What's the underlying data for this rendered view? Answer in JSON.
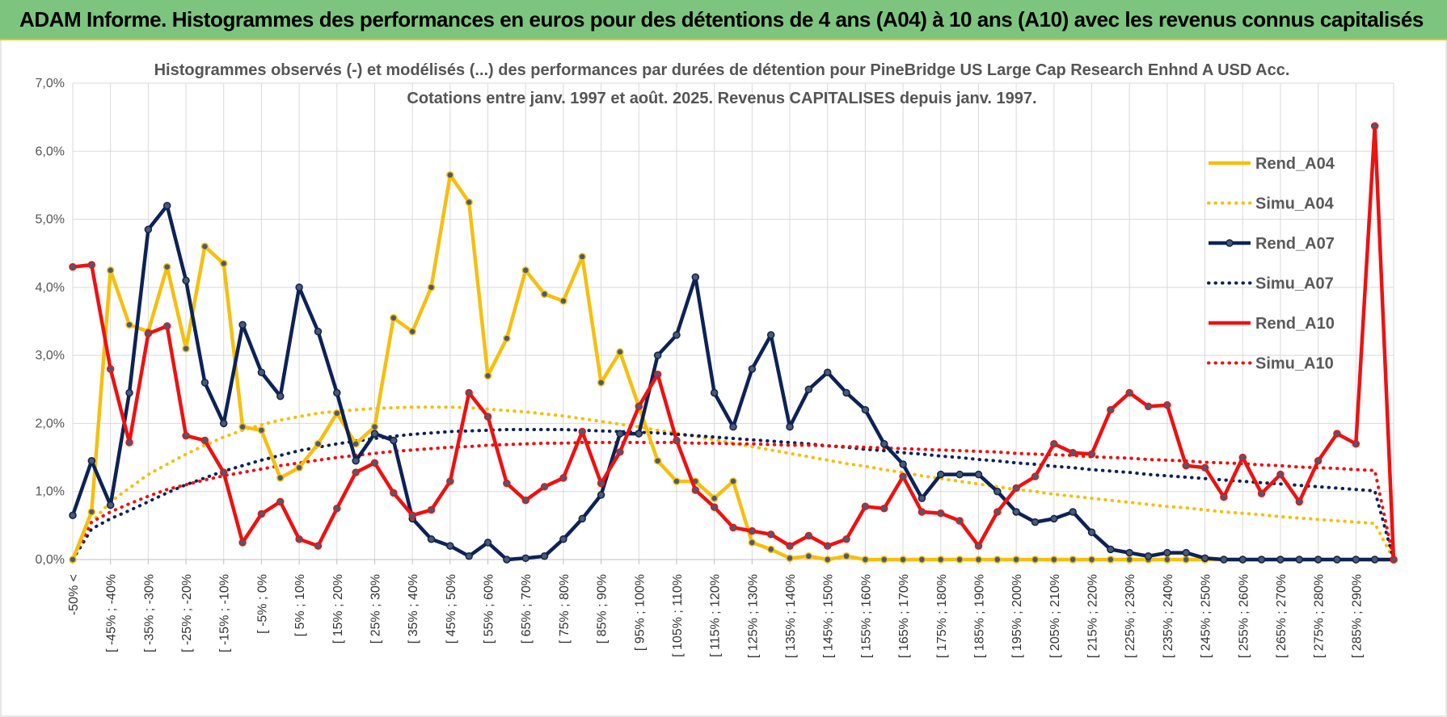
{
  "banner": {
    "title": "ADAM Informe. Histogrammes des performances en euros pour des détentions de 4 ans (A04) à 10 ans (A10) avec les revenus connus capitalisés"
  },
  "chart_data": {
    "type": "line",
    "title_line1": "Histogrammes observés (-) et modélisés (...) des performances par durées de détention pour PineBridge US Large Cap Research Enhnd A USD Acc.",
    "title_line2": "Cotations entre janv. 1997 et août. 2025. Revenus CAPITALISES depuis janv. 1997.",
    "xlabel": "",
    "ylabel": "",
    "ylim": [
      0,
      7
    ],
    "yticks": [
      "0,0%",
      "1,0%",
      "2,0%",
      "3,0%",
      "4,0%",
      "5,0%",
      "6,0%",
      "7,0%"
    ],
    "grid": true,
    "legend_position": "right",
    "x_tick_labels": [
      "-50% <",
      "[ -45% ; -40%",
      "[ -35% ; -30%",
      "[ -25% ; -20%",
      "[ -15% ; -10%",
      "[ -5% ; 0%",
      "[ 5% ; 10%",
      "[ 15% ; 20%",
      "[ 25% ; 30%",
      "[ 35% ; 40%",
      "[ 45% ; 50%",
      "[ 55% ; 60%",
      "[ 65% ; 70%",
      "[ 75% ; 80%",
      "[ 85% ; 90%",
      "[ 95% ; 100%",
      "[ 105% ; 110%",
      "[ 115% ; 120%",
      "[ 125% ; 130%",
      "[ 135% ; 140%",
      "[ 145% ; 150%",
      "[ 155% ; 160%",
      "[ 165% ; 170%",
      "[ 175% ; 180%",
      "[ 185% ; 190%",
      "[ 195% ; 200%",
      "[ 205% ; 210%",
      "[ 215% ; 220%",
      "[ 225% ; 230%",
      "[ 235% ; 240%",
      "[ 245% ; 250%",
      "[ 255% ; 260%",
      "[ 265% ; 270%",
      "[ 275% ; 280%",
      "[ 285% ; 290%"
    ],
    "series": [
      {
        "name": "Rend_A04",
        "style": "solid",
        "color": "#f5bf0f",
        "values": [
          0,
          0.7,
          4.25,
          3.45,
          3.35,
          4.3,
          3.1,
          4.6,
          4.35,
          1.95,
          1.9,
          1.2,
          1.35,
          1.7,
          2.15,
          1.7,
          1.95,
          3.55,
          3.35,
          4.0,
          5.65,
          5.25,
          2.7,
          3.25,
          4.25,
          3.9,
          3.8,
          4.45,
          2.6,
          3.05,
          2.25,
          1.45,
          1.15,
          1.15,
          0.9,
          1.15,
          0.25,
          0.15,
          0.02,
          0.05,
          0,
          0.05,
          0,
          0,
          0,
          0,
          0,
          0,
          0,
          0,
          0,
          0,
          0,
          0,
          0,
          0,
          0,
          0,
          0,
          0,
          0,
          0,
          0,
          0,
          0,
          0,
          0,
          0,
          0,
          0,
          0
        ]
      },
      {
        "name": "Simu_A04",
        "style": "dotted",
        "color": "#f5bf0f",
        "values": [
          0,
          0.55,
          0.85,
          1.05,
          1.25,
          1.4,
          1.55,
          1.68,
          1.8,
          1.9,
          1.98,
          2.05,
          2.1,
          2.15,
          2.18,
          2.2,
          2.22,
          2.23,
          2.24,
          2.24,
          2.24,
          2.23,
          2.21,
          2.19,
          2.17,
          2.14,
          2.11,
          2.07,
          2.03,
          1.99,
          1.95,
          1.9,
          1.86,
          1.81,
          1.76,
          1.71,
          1.66,
          1.61,
          1.56,
          1.51,
          1.46,
          1.41,
          1.37,
          1.32,
          1.28,
          1.23,
          1.19,
          1.15,
          1.11,
          1.07,
          1.03,
          1.0,
          0.96,
          0.93,
          0.9,
          0.87,
          0.84,
          0.81,
          0.78,
          0.76,
          0.73,
          0.7,
          0.68,
          0.66,
          0.63,
          0.61,
          0.59,
          0.57,
          0.55,
          0.53,
          0
        ]
      },
      {
        "name": "Rend_A07",
        "style": "solid",
        "color": "#0e2255",
        "values": [
          0.65,
          1.45,
          0.8,
          2.45,
          4.85,
          5.2,
          4.1,
          2.6,
          2.0,
          3.45,
          2.75,
          2.4,
          4.0,
          3.35,
          2.45,
          1.45,
          1.85,
          1.75,
          0.6,
          0.3,
          0.2,
          0.05,
          0.25,
          0,
          0.02,
          0.05,
          0.3,
          0.6,
          0.95,
          1.85,
          1.85,
          3.0,
          3.3,
          4.15,
          2.45,
          1.95,
          2.8,
          3.3,
          1.95,
          2.5,
          2.75,
          2.45,
          2.2,
          1.7,
          1.4,
          0.9,
          1.25,
          1.25,
          1.25,
          1.0,
          0.7,
          0.55,
          0.6,
          0.7,
          0.4,
          0.15,
          0.1,
          0.05,
          0.1,
          0.1,
          0.02,
          0,
          0,
          0,
          0,
          0,
          0,
          0,
          0,
          0,
          0
        ]
      },
      {
        "name": "Simu_A07",
        "style": "dotted",
        "color": "#0e2255",
        "values": [
          0,
          0.45,
          0.6,
          0.72,
          0.85,
          0.98,
          1.1,
          1.2,
          1.3,
          1.38,
          1.46,
          1.53,
          1.6,
          1.65,
          1.7,
          1.74,
          1.78,
          1.81,
          1.84,
          1.86,
          1.88,
          1.89,
          1.9,
          1.91,
          1.91,
          1.91,
          1.91,
          1.9,
          1.89,
          1.88,
          1.87,
          1.86,
          1.84,
          1.82,
          1.8,
          1.78,
          1.76,
          1.74,
          1.72,
          1.7,
          1.67,
          1.65,
          1.62,
          1.6,
          1.57,
          1.55,
          1.52,
          1.5,
          1.47,
          1.45,
          1.42,
          1.4,
          1.37,
          1.35,
          1.32,
          1.3,
          1.28,
          1.25,
          1.23,
          1.21,
          1.19,
          1.17,
          1.15,
          1.13,
          1.11,
          1.09,
          1.07,
          1.05,
          1.03,
          1.01,
          0
        ]
      },
      {
        "name": "Rend_A10",
        "style": "solid",
        "color": "#ee1111",
        "values": [
          4.3,
          4.33,
          2.8,
          1.72,
          3.32,
          3.43,
          1.82,
          1.75,
          1.28,
          0.25,
          0.67,
          0.85,
          0.3,
          0.2,
          0.75,
          1.28,
          1.42,
          0.98,
          0.65,
          0.73,
          1.15,
          2.45,
          2.1,
          1.12,
          0.87,
          1.07,
          1.2,
          1.88,
          1.12,
          1.58,
          2.25,
          2.72,
          1.75,
          1.02,
          0.77,
          0.47,
          0.42,
          0.37,
          0.2,
          0.35,
          0.2,
          0.3,
          0.78,
          0.75,
          1.22,
          0.7,
          0.68,
          0.57,
          0.2,
          0.7,
          1.05,
          1.22,
          1.7,
          1.57,
          1.55,
          2.2,
          2.45,
          2.25,
          2.27,
          1.38,
          1.35,
          0.92,
          1.5,
          0.97,
          1.25,
          0.85,
          1.45,
          1.85,
          1.7,
          6.37,
          0
        ]
      },
      {
        "name": "Simu_A10",
        "style": "dotted",
        "color": "#ee1111",
        "values": [
          0,
          0.55,
          0.7,
          0.82,
          0.93,
          1.03,
          1.1,
          1.17,
          1.23,
          1.28,
          1.33,
          1.38,
          1.42,
          1.46,
          1.5,
          1.53,
          1.56,
          1.59,
          1.61,
          1.63,
          1.65,
          1.66,
          1.68,
          1.69,
          1.7,
          1.71,
          1.71,
          1.72,
          1.72,
          1.72,
          1.72,
          1.72,
          1.72,
          1.71,
          1.71,
          1.7,
          1.7,
          1.69,
          1.68,
          1.68,
          1.67,
          1.66,
          1.65,
          1.64,
          1.63,
          1.62,
          1.61,
          1.6,
          1.59,
          1.58,
          1.56,
          1.55,
          1.54,
          1.53,
          1.51,
          1.5,
          1.49,
          1.47,
          1.46,
          1.45,
          1.43,
          1.42,
          1.41,
          1.39,
          1.38,
          1.36,
          1.35,
          1.34,
          1.32,
          1.31,
          0
        ]
      }
    ]
  }
}
